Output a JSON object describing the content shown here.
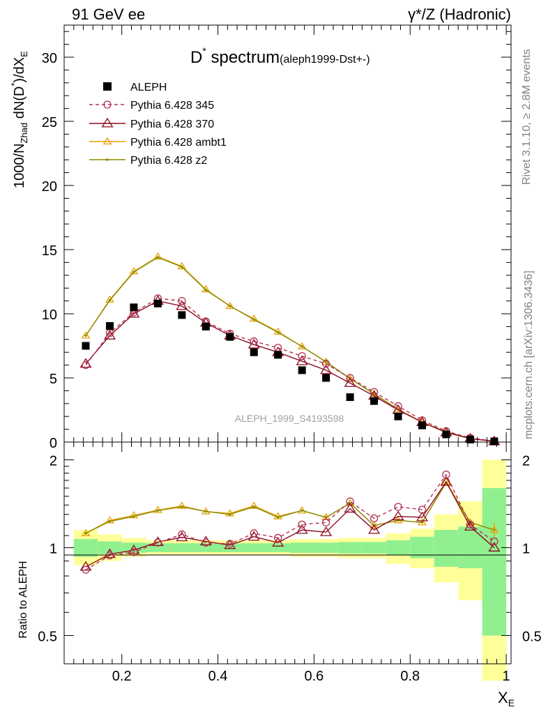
{
  "header": {
    "left": "91 GeV ee",
    "right": "γ*/Z (Hadronic)"
  },
  "side_labels": {
    "rivet": "Rivet 3.1.10, ≥ 2.8M events",
    "mcplots": "mcplots.cern.ch [arXiv:1306.3436]"
  },
  "watermark": "ALEPH_1999_S4193598",
  "title": {
    "main": "D",
    "sup": "*",
    "rest": " spectrum",
    "small": "(aleph1999-Dst+-)"
  },
  "colors": {
    "data": "#000000",
    "p345": "#b23050",
    "p370": "#8b0a1e",
    "ambt1": "#e8a000",
    "z2": "#8a8a00",
    "band_inner": "#90f090",
    "band_outer": "#ffff99"
  },
  "chart_data": [
    {
      "type": "line",
      "ylabel": "1000/N_Zhad dN(D*)/dX_E",
      "xlim": [
        0.08,
        1.01
      ],
      "ylim": [
        0,
        32.5
      ],
      "yticks": [
        0,
        5,
        10,
        15,
        20,
        25,
        30
      ],
      "x": [
        0.125,
        0.175,
        0.225,
        0.275,
        0.325,
        0.375,
        0.425,
        0.475,
        0.525,
        0.575,
        0.625,
        0.675,
        0.725,
        0.775,
        0.825,
        0.875,
        0.925,
        0.975
      ],
      "legend": [
        "ALEPH",
        "Pythia 6.428 345",
        "Pythia 6.428 370",
        "Pythia 6.428 ambt1",
        "Pythia 6.428 z2"
      ],
      "series": [
        {
          "name": "ALEPH",
          "key": "data",
          "values": [
            7.5,
            9.05,
            10.5,
            10.8,
            9.9,
            9.0,
            8.2,
            7.0,
            6.8,
            5.6,
            5.0,
            3.5,
            3.2,
            2.0,
            1.3,
            0.6,
            0.2,
            0.05
          ]
        },
        {
          "name": "Pythia 6.428 345",
          "key": "p345",
          "values": [
            6.0,
            8.5,
            10.1,
            11.2,
            11.0,
            9.4,
            8.45,
            7.85,
            7.35,
            6.7,
            6.1,
            5.0,
            3.9,
            2.8,
            1.7,
            0.85,
            0.32,
            0.08
          ]
        },
        {
          "name": "Pythia 6.428 370",
          "key": "p370",
          "values": [
            6.1,
            8.3,
            10.0,
            11.0,
            10.6,
            9.3,
            8.3,
            7.6,
            7.0,
            6.3,
            5.6,
            4.6,
            3.6,
            2.5,
            1.55,
            0.75,
            0.27,
            0.06
          ]
        },
        {
          "name": "Pythia 6.428 ambt1",
          "key": "ambt1",
          "values": [
            8.3,
            11.1,
            13.3,
            14.45,
            13.7,
            11.9,
            10.6,
            9.6,
            8.6,
            7.45,
            6.25,
            4.95,
            3.75,
            2.55,
            1.55,
            0.8,
            0.28,
            0.06
          ]
        },
        {
          "name": "Pythia 6.428 z2",
          "key": "z2",
          "values": [
            8.3,
            11.05,
            13.25,
            14.4,
            13.65,
            11.85,
            10.6,
            9.55,
            8.55,
            7.45,
            6.25,
            4.95,
            3.75,
            2.55,
            1.55,
            0.8,
            0.28,
            0.06
          ]
        }
      ]
    },
    {
      "type": "line",
      "xlabel": "X_E",
      "ylabel": "Ratio to ALEPH",
      "xlim": [
        0.08,
        1.01
      ],
      "ylim": [
        0.4,
        2.3
      ],
      "xticks": [
        0.2,
        0.4,
        0.6,
        0.8,
        1
      ],
      "yticks": [
        0.5,
        1,
        2
      ],
      "log_y": true,
      "x": [
        0.125,
        0.175,
        0.225,
        0.275,
        0.325,
        0.375,
        0.425,
        0.475,
        0.525,
        0.575,
        0.625,
        0.675,
        0.725,
        0.775,
        0.825,
        0.875,
        0.925,
        0.975
      ],
      "bands": {
        "inner": {
          "lo": [
            0.93,
            0.95,
            0.96,
            0.965,
            0.965,
            0.965,
            0.965,
            0.965,
            0.965,
            0.96,
            0.96,
            0.955,
            0.955,
            0.94,
            0.92,
            0.86,
            0.85,
            0.5
          ],
          "hi": [
            1.07,
            1.05,
            1.04,
            1.035,
            1.035,
            1.035,
            1.035,
            1.035,
            1.035,
            1.04,
            1.04,
            1.045,
            1.045,
            1.06,
            1.09,
            1.15,
            1.18,
            1.6
          ]
        },
        "outer": {
          "lo": [
            0.87,
            0.9,
            0.93,
            0.94,
            0.94,
            0.94,
            0.94,
            0.94,
            0.94,
            0.93,
            0.93,
            0.92,
            0.92,
            0.88,
            0.85,
            0.76,
            0.66,
            0.35
          ],
          "hi": [
            1.15,
            1.11,
            1.08,
            1.06,
            1.06,
            1.06,
            1.06,
            1.06,
            1.06,
            1.07,
            1.07,
            1.08,
            1.08,
            1.12,
            1.16,
            1.3,
            1.44,
            2.0
          ]
        }
      },
      "series": [
        {
          "name": "Pythia 6.428 345",
          "key": "p345",
          "values": [
            0.84,
            0.94,
            0.965,
            1.04,
            1.11,
            1.04,
            1.03,
            1.12,
            1.08,
            1.2,
            1.22,
            1.44,
            1.26,
            1.38,
            1.35,
            1.78,
            1.2,
            1.05
          ]
        },
        {
          "name": "Pythia 6.428 370",
          "key": "p370",
          "values": [
            0.86,
            0.95,
            0.98,
            1.045,
            1.085,
            1.05,
            1.02,
            1.09,
            1.04,
            1.15,
            1.13,
            1.36,
            1.15,
            1.28,
            1.27,
            1.68,
            1.18,
            1.0
          ]
        },
        {
          "name": "Pythia 6.428 ambt1",
          "key": "ambt1",
          "values": [
            1.12,
            1.24,
            1.29,
            1.345,
            1.39,
            1.33,
            1.31,
            1.39,
            1.28,
            1.34,
            1.27,
            1.42,
            1.19,
            1.24,
            1.22,
            1.68,
            1.22,
            1.15
          ]
        },
        {
          "name": "Pythia 6.428 z2",
          "key": "z2",
          "values": [
            1.12,
            1.23,
            1.28,
            1.34,
            1.38,
            1.33,
            1.3,
            1.38,
            1.27,
            1.34,
            1.27,
            1.42,
            1.19,
            1.24,
            1.22,
            1.67,
            1.22,
            1.15
          ]
        }
      ]
    }
  ]
}
